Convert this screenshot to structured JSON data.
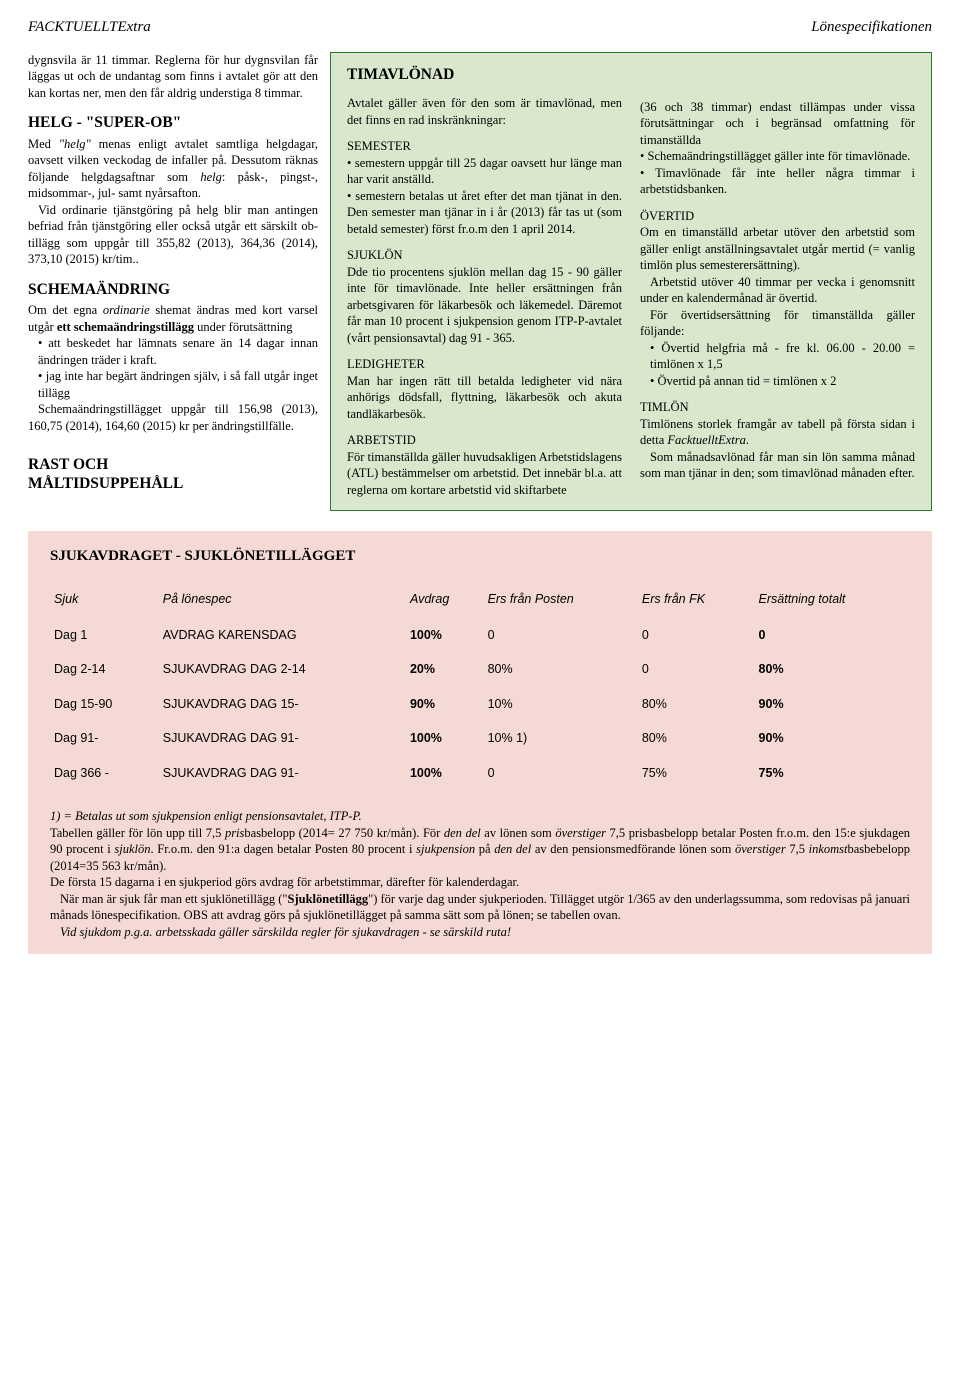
{
  "header": {
    "left": "FACKTUELLTExtra",
    "right": "Lönespecifikationen"
  },
  "left": {
    "p1": "dygnsvila är 11 timmar. Reglerna för hur dygnsvilan får läggas ut och de undantag som finns i avtalet gör att den kan kortas ner, men den får aldrig understiga 8 timmar.",
    "h1": "HELG - \"SUPER-OB\"",
    "p2a": "Med ",
    "p2b": "\"helg\"",
    "p2c": " menas enligt avtalet samtliga helgdagar, oavsett vilken veckodag de infaller på. Dessutom räknas följande helgdagsaftnar som ",
    "p2d": "helg",
    "p2e": ": påsk-, pingst-, midsommar-, jul- samt nyårsafton.",
    "p3": "Vid ordinarie tjänstgöring på helg blir man antingen befriad från tjänstgöring eller också utgår ett särskilt ob-tillägg som uppgår till 355,82 (2013), 364,36 (2014), 373,10 (2015) kr/tim..",
    "h2": "SCHEMAÄNDRING",
    "p4a": "Om det egna ",
    "p4b": "ordinarie",
    "p4c": " shemat ändras med kort varsel utgår ",
    "p4d": "ett schemaändringstillägg",
    "p4e": " under förutsättning",
    "b1": "• att beskedet har lämnats senare än 14 dagar innan ändringen träder i kraft.",
    "b2": "• jag inte har begärt ändringen själv, i så fall utgår inget tillägg",
    "p5": "Schemaändringstillägget uppgår till 156,98 (2013), 160,75 (2014), 164,60 (2015) kr per ändringstillfälle.",
    "h3a": "RAST OCH",
    "h3b": "MÅLTIDSUPPEHÅLL"
  },
  "gL": {
    "title": "TIMAVLÖNAD",
    "p1": "Avtalet gäller även för den som är timavlönad, men det finns en rad inskränkningar:",
    "h1": "SEMESTER",
    "p2": "• semestern uppgår till 25 dagar oavsett hur länge man har varit anställd.",
    "p3": "• semestern betalas ut året efter det man tjänat in den. Den semester man tjänar in i år (2013) får tas ut (som betald semester) först fr.o.m den 1 april 2014.",
    "h2": "SJUKLÖN",
    "p4": "Dde tio procentens sjuklön mellan dag 15 - 90 gäller inte för timavlönade. Inte heller ersättningen från arbetsgivaren för läkarbesök och läkemedel. Däremot får man 10 procent i sjukpension genom ITP-P-avtalet (vårt pensionsavtal) dag 91 - 365.",
    "h3": "LEDIGHETER",
    "p5": "Man har ingen rätt till betalda ledigheter vid nära anhörigs dödsfall, flyttning, läkarbesök och akuta tandläkarbesök.",
    "h4": "ARBETSTID",
    "p6": "För timanställda gäller huvudsakligen Arbetstidslagens (ATL) bestämmelser om arbetstid. Det innebär bl.a. att reglerna om kortare arbetstid vid skiftarbete"
  },
  "gR": {
    "p1": "(36 och 38 timmar) endast tillämpas under vissa förutsättningar och i begränsad omfattning för timanställda",
    "p2": "• Schemaändringstillägget gäller inte för timavlönade.",
    "p3": "• Timavlönade får inte heller några timmar i arbetstidsbanken.",
    "h1": "ÖVERTID",
    "p4": "Om en timanställd arbetar utöver den arbetstid som gäller enligt anställningsavtalet utgår mertid (= vanlig timlön plus semesterersättning).",
    "p5": "Arbetstid utöver 40 timmar per vecka i genomsnitt under en kalendermånad är övertid.",
    "p6": "För övertidsersättning för timanställda gäller följande:",
    "p7": "• Övertid helgfria må - fre kl. 06.00 - 20.00 = timlönen x 1,5",
    "p8": "• Övertid på annan tid = timlönen x 2",
    "h2": "TIMLÖN",
    "p9a": "Timlönens storlek framgår av tabell på första sidan i detta ",
    "p9b": "FacktuelltExtra",
    "p9c": ".",
    "p10": "Som månadsavlönad får man sin lön samma månad som man tjänar in den; som timavlönad månaden efter."
  },
  "pink": {
    "title": "SJUKAVDRAGET - SJUKLÖNETILLÄGGET",
    "columns": [
      "Sjuk",
      "På lönespec",
      "Avdrag",
      "Ers från Posten",
      "Ers från FK",
      "Ersättning totalt"
    ],
    "rows": [
      [
        "Dag 1",
        "AVDRAG KARENSDAG",
        "100%",
        "0",
        "0",
        "0"
      ],
      [
        "Dag 2-14",
        "SJUKAVDRAG DAG 2-14",
        "20%",
        "80%",
        "0",
        "80%"
      ],
      [
        "Dag 15-90",
        "SJUKAVDRAG DAG 15-",
        "90%",
        "10%",
        "80%",
        "90%"
      ],
      [
        "Dag 91-",
        "SJUKAVDRAG DAG 91-",
        "100%",
        "10% 1)",
        "80%",
        "90%"
      ],
      [
        "Dag 366 -",
        "SJUKAVDRAG DAG 91-",
        "100%",
        "0",
        "75%",
        "75%"
      ]
    ],
    "f1": "1) = Betalas ut som sjukpension enligt pensionsavtalet, ITP-P.",
    "f2": "Tabellen gäller för lön upp till 7,5 prisbasbelopp (2014= 27 750 kr/mån). För den del av lönen som överstiger 7,5 prisbasbelopp betalar Posten fr.o.m. den 15:e sjukdagen 90 procent i sjuklön. Fr.o.m. den 91:a dagen betalar Posten 80 procent i sjukpension på den del av den pensionsmedförande lönen som överstiger 7,5 inkomstbasbebelopp (2014=35 563 kr/mån).",
    "f3": "De första 15 dagarna i en sjukperiod görs avdrag för arbetstimmar, därefter för kalenderdagar.",
    "f4": "När man är sjuk får man ett sjuklönetillägg (\"Sjuklönetillägg\") för varje dag under sjukperioden. Tillägget utgör 1/365 av den underlagssumma, som redovisas på januari månads lönespecifikation. OBS att avdrag görs på sjuklönetillägget på samma sätt som på lönen; se tabellen ovan.",
    "f5": "Vid sjukdom p.g.a. arbetsskada gäller särskilda regler för sjukavdragen - se särskild ruta!"
  }
}
